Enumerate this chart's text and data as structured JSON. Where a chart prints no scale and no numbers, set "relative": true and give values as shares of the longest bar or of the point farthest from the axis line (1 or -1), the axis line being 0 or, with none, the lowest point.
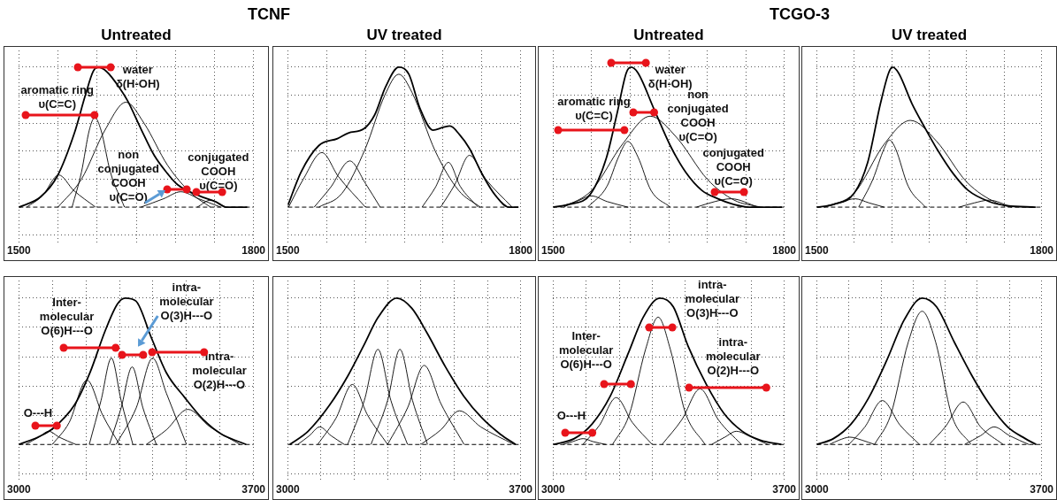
{
  "chart_data": [
    {
      "type": "line",
      "title": "TCNF",
      "subtitle": "Untreated",
      "relative": true,
      "grid": true,
      "marker": "none",
      "xlim": [
        1500,
        1800
      ],
      "xticks": [
        1500,
        {
          "value": 1550,
          "label": null
        },
        {
          "value": 1600,
          "label": null
        },
        {
          "value": 1650,
          "label": null
        },
        {
          "value": 1700,
          "label": null
        },
        {
          "value": 1750,
          "label": null
        },
        1800
      ],
      "ref_lines": [
        {
          "axis": "y",
          "value": 0,
          "line_style": "dashed"
        }
      ],
      "annotations": [
        "water\nδ(H-OH)",
        "aromatic ring\nυ(C=C)",
        "non\nconjugated\nCOOH\nυ(C=O)",
        "conjugated\nCOOH\nυ(C=O)"
      ],
      "series": [
        {
          "color": "#000000",
          "x": [
            1500,
            1527,
            1549,
            1571,
            1585,
            1595,
            1601,
            1612,
            1629,
            1639,
            1656,
            1673,
            1690,
            1703,
            1731,
            1751,
            1765,
            1792
          ],
          "values": [
            0,
            0.07,
            0.22,
            0.53,
            0.8,
            0.97,
            1,
            0.97,
            0.85,
            0.76,
            0.56,
            0.37,
            0.24,
            0.16,
            0.08,
            0.04,
            0,
            0
          ]
        },
        {
          "color": "#000000",
          "x": [
            1510,
            1530,
            1551,
            1570,
            1598
          ],
          "values": [
            0,
            0.08,
            0.23,
            0.12,
            0
          ]
        },
        {
          "color": "#000000",
          "x": [
            1568,
            1580,
            1590,
            1597,
            1605,
            1617,
            1635
          ],
          "values": [
            0,
            0.25,
            0.55,
            0.64,
            0.55,
            0.25,
            0
          ]
        },
        {
          "color": "#000000",
          "x": [
            1550,
            1580,
            1610,
            1637,
            1660,
            1690,
            1720,
            1745
          ],
          "values": [
            0,
            0.2,
            0.55,
            0.75,
            0.6,
            0.3,
            0.1,
            0
          ]
        },
        {
          "color": "#000000",
          "x": [
            1656,
            1685,
            1707,
            1730,
            1758
          ],
          "values": [
            0,
            0.06,
            0.11,
            0.06,
            0
          ]
        },
        {
          "color": "#000000",
          "x": [
            1728,
            1745,
            1765
          ],
          "values": [
            0,
            0.05,
            0
          ]
        }
      ]
    },
    {
      "type": "line",
      "subtitle": "UV treated",
      "relative": true,
      "grid": true,
      "marker": "none",
      "xlim": [
        1500,
        1800
      ],
      "xticks": [
        1500,
        {
          "value": 1550,
          "label": null
        },
        {
          "value": 1600,
          "label": null
        },
        {
          "value": 1650,
          "label": null
        },
        {
          "value": 1700,
          "label": null
        },
        {
          "value": 1750,
          "label": null
        },
        1800
      ],
      "ref_lines": [
        {
          "axis": "y",
          "value": 0,
          "line_style": "dashed"
        }
      ],
      "series": [
        {
          "color": "#000000",
          "x": [
            1500,
            1517,
            1540,
            1564,
            1578,
            1598,
            1612,
            1626,
            1643,
            1656,
            1670,
            1687,
            1700,
            1709,
            1721,
            1734,
            1751,
            1768,
            1785,
            1797
          ],
          "values": [
            0.01,
            0.25,
            0.44,
            0.49,
            0.53,
            0.56,
            0.66,
            0.86,
            1,
            0.95,
            0.71,
            0.55,
            0.57,
            0.58,
            0.52,
            0.42,
            0.23,
            0.08,
            0,
            0
          ]
        },
        {
          "color": "#000000",
          "x": [
            1501,
            1520,
            1544,
            1565,
            1600
          ],
          "values": [
            0,
            0.2,
            0.39,
            0.22,
            0
          ]
        },
        {
          "color": "#000000",
          "x": [
            1534,
            1555,
            1580,
            1600,
            1619
          ],
          "values": [
            0,
            0.14,
            0.33,
            0.17,
            0
          ]
        },
        {
          "color": "#000000",
          "x": [
            1540,
            1570,
            1600,
            1625,
            1643,
            1660,
            1690,
            1720,
            1748
          ],
          "values": [
            0,
            0.1,
            0.42,
            0.8,
            0.95,
            0.82,
            0.4,
            0.12,
            0
          ]
        },
        {
          "color": "#000000",
          "x": [
            1673,
            1690,
            1707,
            1722,
            1745
          ],
          "values": [
            0,
            0.14,
            0.32,
            0.15,
            0
          ]
        },
        {
          "color": "#000000",
          "x": [
            1697,
            1715,
            1734,
            1755,
            1789
          ],
          "values": [
            0,
            0.16,
            0.37,
            0.2,
            0
          ]
        }
      ]
    },
    {
      "type": "line",
      "title": "TCGO-3",
      "subtitle": "Untreated",
      "relative": true,
      "grid": true,
      "marker": "none",
      "xlim": [
        1500,
        1800
      ],
      "xticks": [
        1500,
        {
          "value": 1550,
          "label": null
        },
        {
          "value": 1600,
          "label": null
        },
        {
          "value": 1650,
          "label": null
        },
        {
          "value": 1700,
          "label": null
        },
        {
          "value": 1750,
          "label": null
        },
        1800
      ],
      "ref_lines": [
        {
          "axis": "y",
          "value": 0,
          "line_style": "dashed"
        }
      ],
      "annotations": [
        "water\nδ(H-OH)",
        "aromatic ring\nυ(C=C)",
        "non\nconjugated\nCOOH\nυ(C=O)",
        "conjugated\nCOOH\nυ(C=O)"
      ],
      "series": [
        {
          "color": "#000000",
          "x": [
            1500,
            1521,
            1548,
            1569,
            1583,
            1595,
            1601,
            1610,
            1631,
            1652,
            1672,
            1693,
            1714,
            1734,
            1755,
            1797
          ],
          "values": [
            0,
            0.02,
            0.09,
            0.35,
            0.67,
            0.96,
            1,
            0.96,
            0.7,
            0.44,
            0.25,
            0.12,
            0.06,
            0.02,
            0,
            0
          ]
        },
        {
          "color": "#000000",
          "x": [
            1507,
            1530,
            1550,
            1570,
            1597
          ],
          "values": [
            0,
            0.04,
            0.08,
            0.04,
            0
          ]
        },
        {
          "color": "#000000",
          "x": [
            1545,
            1570,
            1585,
            1597,
            1610,
            1627,
            1652
          ],
          "values": [
            0,
            0.15,
            0.36,
            0.47,
            0.36,
            0.12,
            0
          ]
        },
        {
          "color": "#000000",
          "x": [
            1514,
            1550,
            1590,
            1626,
            1660,
            1700,
            1735,
            1769
          ],
          "values": [
            0,
            0.12,
            0.45,
            0.65,
            0.5,
            0.2,
            0.05,
            0
          ]
        },
        {
          "color": "#000000",
          "x": [
            1686,
            1710,
            1731,
            1766
          ],
          "values": [
            0,
            0.04,
            0.06,
            0
          ]
        }
      ]
    },
    {
      "type": "line",
      "subtitle": "UV treated",
      "relative": true,
      "grid": true,
      "marker": "none",
      "xlim": [
        1500,
        1800
      ],
      "xticks": [
        1500,
        {
          "value": 1550,
          "label": null
        },
        {
          "value": 1600,
          "label": null
        },
        {
          "value": 1650,
          "label": null
        },
        {
          "value": 1700,
          "label": null
        },
        {
          "value": 1750,
          "label": null
        },
        1800
      ],
      "ref_lines": [
        {
          "axis": "y",
          "value": 0,
          "line_style": "dashed"
        }
      ],
      "series": [
        {
          "color": "#000000",
          "x": [
            1500,
            1523,
            1550,
            1568,
            1585,
            1596,
            1601,
            1609,
            1627,
            1644,
            1661,
            1682,
            1702,
            1730,
            1754,
            1792
          ],
          "values": [
            0,
            0.02,
            0.1,
            0.32,
            0.74,
            0.96,
            1,
            0.96,
            0.74,
            0.57,
            0.41,
            0.24,
            0.12,
            0.04,
            0.01,
            0
          ]
        },
        {
          "color": "#000000",
          "x": [
            1510,
            1530,
            1551,
            1570,
            1590
          ],
          "values": [
            0,
            0.03,
            0.06,
            0.03,
            0
          ]
        },
        {
          "color": "#000000",
          "x": [
            1556,
            1575,
            1590,
            1597,
            1605,
            1622,
            1645
          ],
          "values": [
            0,
            0.2,
            0.42,
            0.48,
            0.42,
            0.15,
            0
          ]
        },
        {
          "color": "#000000",
          "x": [
            1510,
            1550,
            1590,
            1625,
            1660,
            1700,
            1740,
            1760
          ],
          "values": [
            0,
            0.1,
            0.45,
            0.62,
            0.47,
            0.18,
            0.03,
            0
          ]
        },
        {
          "color": "#000000",
          "x": [
            1690,
            1710,
            1730,
            1760
          ],
          "values": [
            0,
            0.03,
            0.05,
            0
          ]
        }
      ]
    },
    {
      "type": "line",
      "relative": true,
      "grid": true,
      "marker": "none",
      "xlim": [
        3000,
        3700
      ],
      "xticks": [
        3000,
        {
          "value": 3100,
          "label": null
        },
        {
          "value": 3200,
          "label": null
        },
        {
          "value": 3300,
          "label": null
        },
        {
          "value": 3400,
          "label": null
        },
        {
          "value": 3500,
          "label": null
        },
        {
          "value": 3600,
          "label": null
        },
        3700
      ],
      "ref_lines": [
        {
          "axis": "y",
          "value": 0,
          "line_style": "dashed"
        }
      ],
      "annotations": [
        "Inter-\nmolecular\nO(6)H---O",
        "intra-\nmolecular\nO(3)H---O",
        "intra-\nmolecular\nO(2)H---O",
        "O---H"
      ],
      "series": [
        {
          "color": "#000000",
          "x": [
            3000,
            3057,
            3102,
            3166,
            3212,
            3258,
            3294,
            3317,
            3349,
            3395,
            3440,
            3495,
            3550,
            3605,
            3678
          ],
          "values": [
            0,
            0.05,
            0.11,
            0.27,
            0.49,
            0.78,
            0.96,
            1,
            0.98,
            0.73,
            0.49,
            0.32,
            0.17,
            0.07,
            0
          ]
        },
        {
          "color": "#000000",
          "x": [
            3020,
            3060,
            3089,
            3120,
            3170
          ],
          "values": [
            0,
            0.05,
            0.09,
            0.05,
            0
          ]
        },
        {
          "color": "#000000",
          "x": [
            3100,
            3150,
            3203,
            3250,
            3300
          ],
          "values": [
            0,
            0.15,
            0.44,
            0.2,
            0
          ]
        },
        {
          "color": "#000000",
          "x": [
            3210,
            3245,
            3276,
            3305,
            3340
          ],
          "values": [
            0,
            0.3,
            0.59,
            0.3,
            0
          ]
        },
        {
          "color": "#000000",
          "x": [
            3270,
            3305,
            3338,
            3370,
            3410
          ],
          "values": [
            0,
            0.25,
            0.53,
            0.25,
            0
          ]
        },
        {
          "color": "#000000",
          "x": [
            3290,
            3350,
            3399,
            3440,
            3500
          ],
          "values": [
            0,
            0.25,
            0.59,
            0.35,
            0
          ]
        },
        {
          "color": "#000000",
          "x": [
            3380,
            3440,
            3504,
            3570,
            3660
          ],
          "values": [
            0,
            0.1,
            0.24,
            0.12,
            0
          ]
        }
      ]
    },
    {
      "type": "line",
      "relative": true,
      "grid": true,
      "marker": "none",
      "xlim": [
        3000,
        3700
      ],
      "xticks": [
        3000,
        {
          "value": 3100,
          "label": null
        },
        {
          "value": 3200,
          "label": null
        },
        {
          "value": 3300,
          "label": null
        },
        {
          "value": 3400,
          "label": null
        },
        {
          "value": 3500,
          "label": null
        },
        {
          "value": 3600,
          "label": null
        },
        3700
      ],
      "ref_lines": [
        {
          "axis": "y",
          "value": 0,
          "line_style": "dashed"
        }
      ],
      "series": [
        {
          "color": "#000000",
          "x": [
            3006,
            3061,
            3126,
            3181,
            3227,
            3272,
            3328,
            3373,
            3419,
            3474,
            3529,
            3584,
            3639,
            3685
          ],
          "values": [
            0,
            0.09,
            0.27,
            0.47,
            0.67,
            0.87,
            1,
            0.93,
            0.76,
            0.53,
            0.33,
            0.18,
            0.07,
            0
          ]
        },
        {
          "color": "#000000",
          "x": [
            3030,
            3065,
            3096,
            3130,
            3170
          ],
          "values": [
            0,
            0.06,
            0.12,
            0.06,
            0
          ]
        },
        {
          "color": "#000000",
          "x": [
            3090,
            3145,
            3194,
            3240,
            3300
          ],
          "values": [
            0,
            0.18,
            0.41,
            0.2,
            0
          ]
        },
        {
          "color": "#000000",
          "x": [
            3180,
            3230,
            3271,
            3310,
            3360
          ],
          "values": [
            0,
            0.3,
            0.65,
            0.3,
            0
          ]
        },
        {
          "color": "#000000",
          "x": [
            3250,
            3300,
            3337,
            3375,
            3420
          ],
          "values": [
            0,
            0.3,
            0.65,
            0.3,
            0
          ]
        },
        {
          "color": "#000000",
          "x": [
            3300,
            3360,
            3410,
            3460,
            3530
          ],
          "values": [
            0,
            0.25,
            0.54,
            0.28,
            0
          ]
        },
        {
          "color": "#000000",
          "x": [
            3400,
            3460,
            3516,
            3580,
            3680
          ],
          "values": [
            0,
            0.1,
            0.23,
            0.12,
            0
          ]
        }
      ]
    },
    {
      "type": "line",
      "relative": true,
      "grid": true,
      "marker": "none",
      "xlim": [
        3000,
        3700
      ],
      "xticks": [
        3000,
        {
          "value": 3100,
          "label": null
        },
        {
          "value": 3200,
          "label": null
        },
        {
          "value": 3300,
          "label": null
        },
        {
          "value": 3400,
          "label": null
        },
        {
          "value": 3500,
          "label": null
        },
        {
          "value": 3600,
          "label": null
        },
        3700
      ],
      "ref_lines": [
        {
          "axis": "y",
          "value": 0,
          "line_style": "dashed"
        }
      ],
      "annotations": [
        "intra-\nmolecular\nO(3)H---O",
        "Inter-\nmolecular\nO(6)H---O",
        "intra-\nmolecular\nO(2)H---O",
        "O---H"
      ],
      "series": [
        {
          "color": "#000000",
          "x": [
            3000,
            3064,
            3118,
            3173,
            3227,
            3273,
            3323,
            3364,
            3409,
            3464,
            3518,
            3573,
            3627,
            3691
          ],
          "values": [
            0,
            0.04,
            0.14,
            0.33,
            0.62,
            0.87,
            1,
            0.94,
            0.67,
            0.41,
            0.21,
            0.09,
            0.03,
            0
          ]
        },
        {
          "color": "#000000",
          "x": [
            3030,
            3060,
            3091,
            3120,
            3160
          ],
          "values": [
            0,
            0.02,
            0.04,
            0.02,
            0
          ]
        },
        {
          "color": "#000000",
          "x": [
            3090,
            3140,
            3191,
            3240,
            3300
          ],
          "values": [
            0,
            0.13,
            0.32,
            0.15,
            0
          ]
        },
        {
          "color": "#000000",
          "x": [
            3180,
            3230,
            3280,
            3318,
            3355,
            3400,
            3460
          ],
          "values": [
            0,
            0.2,
            0.65,
            0.87,
            0.65,
            0.22,
            0
          ]
        },
        {
          "color": "#000000",
          "x": [
            3330,
            3390,
            3445,
            3500,
            3570
          ],
          "values": [
            0,
            0.17,
            0.38,
            0.17,
            0
          ]
        },
        {
          "color": "#000000",
          "x": [
            3480,
            3520,
            3555,
            3600,
            3650
          ],
          "values": [
            0,
            0.05,
            0.09,
            0.05,
            0
          ]
        }
      ]
    },
    {
      "type": "line",
      "relative": true,
      "grid": true,
      "marker": "none",
      "xlim": [
        3000,
        3700
      ],
      "xticks": [
        3000,
        {
          "value": 3100,
          "label": null
        },
        {
          "value": 3200,
          "label": null
        },
        {
          "value": 3300,
          "label": null
        },
        {
          "value": 3400,
          "label": null
        },
        {
          "value": 3500,
          "label": null
        },
        {
          "value": 3600,
          "label": null
        },
        3700
      ],
      "ref_lines": [
        {
          "axis": "y",
          "value": 0,
          "line_style": "dashed"
        }
      ],
      "series": [
        {
          "color": "#000000",
          "x": [
            3000,
            3052,
            3107,
            3162,
            3217,
            3272,
            3328,
            3373,
            3428,
            3483,
            3539,
            3594,
            3649,
            3683
          ],
          "values": [
            0,
            0.04,
            0.14,
            0.32,
            0.57,
            0.85,
            1,
            0.94,
            0.7,
            0.47,
            0.27,
            0.12,
            0.04,
            0
          ]
        },
        {
          "color": "#000000",
          "x": [
            3040,
            3070,
            3103,
            3140,
            3180
          ],
          "values": [
            0,
            0.03,
            0.05,
            0.03,
            0
          ]
        },
        {
          "color": "#000000",
          "x": [
            3100,
            3150,
            3204,
            3260,
            3320
          ],
          "values": [
            0,
            0.12,
            0.3,
            0.13,
            0
          ]
        },
        {
          "color": "#000000",
          "x": [
            3180,
            3230,
            3285,
            3328,
            3370,
            3420,
            3480
          ],
          "values": [
            0,
            0.2,
            0.7,
            0.91,
            0.7,
            0.2,
            0
          ]
        },
        {
          "color": "#000000",
          "x": [
            3350,
            3400,
            3456,
            3510,
            3580
          ],
          "values": [
            0,
            0.12,
            0.29,
            0.12,
            0
          ]
        },
        {
          "color": "#000000",
          "x": [
            3460,
            3510,
            3552,
            3600,
            3660
          ],
          "values": [
            0,
            0.06,
            0.12,
            0.06,
            0
          ]
        }
      ]
    }
  ]
}
